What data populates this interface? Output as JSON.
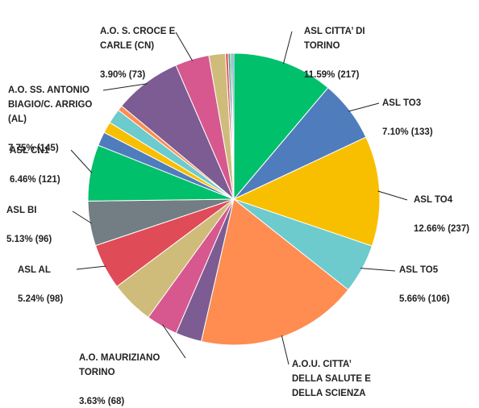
{
  "chart_data": {
    "type": "pie",
    "title": "",
    "slices": [
      {
        "name": "ASL CITTA' DI TORINO",
        "label_lines": [
          "ASL CITTA’ DI",
          "TORINO"
        ],
        "pct_text": "11.59% (217)",
        "percent": 11.59,
        "count": 217,
        "color": "#00c06b",
        "labeled": true
      },
      {
        "name": "ASL TO3",
        "label_lines": [
          "ASL TO3"
        ],
        "pct_text": "7.10% (133)",
        "percent": 7.1,
        "count": 133,
        "color": "#4f7cbd",
        "labeled": true
      },
      {
        "name": "ASL TO4",
        "label_lines": [
          "ASL TO4"
        ],
        "pct_text": "12.66% (237)",
        "percent": 12.66,
        "count": 237,
        "color": "#f8bf00",
        "labeled": true
      },
      {
        "name": "ASL TO5",
        "label_lines": [
          "ASL TO5"
        ],
        "pct_text": "5.66% (106)",
        "percent": 5.66,
        "count": 106,
        "color": "#6dcacd",
        "labeled": true
      },
      {
        "name": "A.O.U. CITTA' DELLA SALUTE E DELLA SCIENZA",
        "label_lines": [
          "A.O.U. CITTA’",
          "DELLA SALUTE E",
          "DELLA SCIENZA"
        ],
        "pct_text": "",
        "percent": 18.6,
        "color": "#ff8c50",
        "labeled": true
      },
      {
        "name": "purple slice",
        "percent": 3.0,
        "color": "#7c5c93",
        "labeled": false
      },
      {
        "name": "A.O. MAURIZIANO TORINO",
        "label_lines": [
          "A.O. MAURIZIANO",
          "TORINO"
        ],
        "pct_text": "3.63% (68)",
        "percent": 3.63,
        "count": 68,
        "color": "#d6588f",
        "labeled": true
      },
      {
        "name": "olive slice",
        "percent": 5.0,
        "color": "#cfbc7a",
        "labeled": false
      },
      {
        "name": "ASL AL",
        "label_lines": [
          "ASL AL"
        ],
        "pct_text": "5.24% (98)",
        "percent": 5.24,
        "count": 98,
        "color": "#e04b58",
        "labeled": true
      },
      {
        "name": "ASL BI",
        "label_lines": [
          "ASL BI"
        ],
        "pct_text": "5.13% (96)",
        "percent": 5.13,
        "count": 96,
        "color": "#737d84",
        "labeled": true
      },
      {
        "name": "ASL CN1",
        "label_lines": [
          "ASL CN1"
        ],
        "pct_text": "6.46% (121)",
        "percent": 6.46,
        "count": 121,
        "color": "#00c06b",
        "labeled": true
      },
      {
        "name": "blue slice",
        "percent": 1.6,
        "color": "#4f7cbd",
        "labeled": false
      },
      {
        "name": "yellow slice",
        "percent": 1.3,
        "color": "#f8bf00",
        "labeled": false
      },
      {
        "name": "teal slice",
        "percent": 1.7,
        "color": "#6dcacd",
        "labeled": false
      },
      {
        "name": "orange slice",
        "percent": 0.6,
        "color": "#ff8c50",
        "labeled": false
      },
      {
        "name": "A.O. SS. ANTONIO BIAGIO/C. ARRIGO (AL)",
        "label_lines": [
          "A.O. SS. ANTONIO",
          "BIAGIO/C. ARRIGO",
          "(AL)"
        ],
        "pct_text": "7.75% (145)",
        "percent": 7.75,
        "count": 145,
        "color": "#7c5c93",
        "labeled": true
      },
      {
        "name": "A.O. S. CROCE E CARLE (CN)",
        "label_lines": [
          "A.O. S. CROCE E",
          "CARLE (CN)"
        ],
        "pct_text": "3.90% (73)",
        "percent": 3.9,
        "count": 73,
        "color": "#d6588f",
        "labeled": true
      },
      {
        "name": "small olive slice",
        "percent": 1.9,
        "color": "#cfbc7a",
        "labeled": false
      },
      {
        "name": "small red slice",
        "percent": 0.3,
        "color": "#e04b58",
        "labeled": false
      },
      {
        "name": "small grey slice",
        "percent": 0.25,
        "color": "#737d84",
        "labeled": false
      },
      {
        "name": "small green slice",
        "percent": 0.2,
        "color": "#00c06b",
        "labeled": false
      },
      {
        "name": "small blue slice",
        "percent": 0.2,
        "color": "#4f7cbd",
        "labeled": false
      }
    ]
  }
}
